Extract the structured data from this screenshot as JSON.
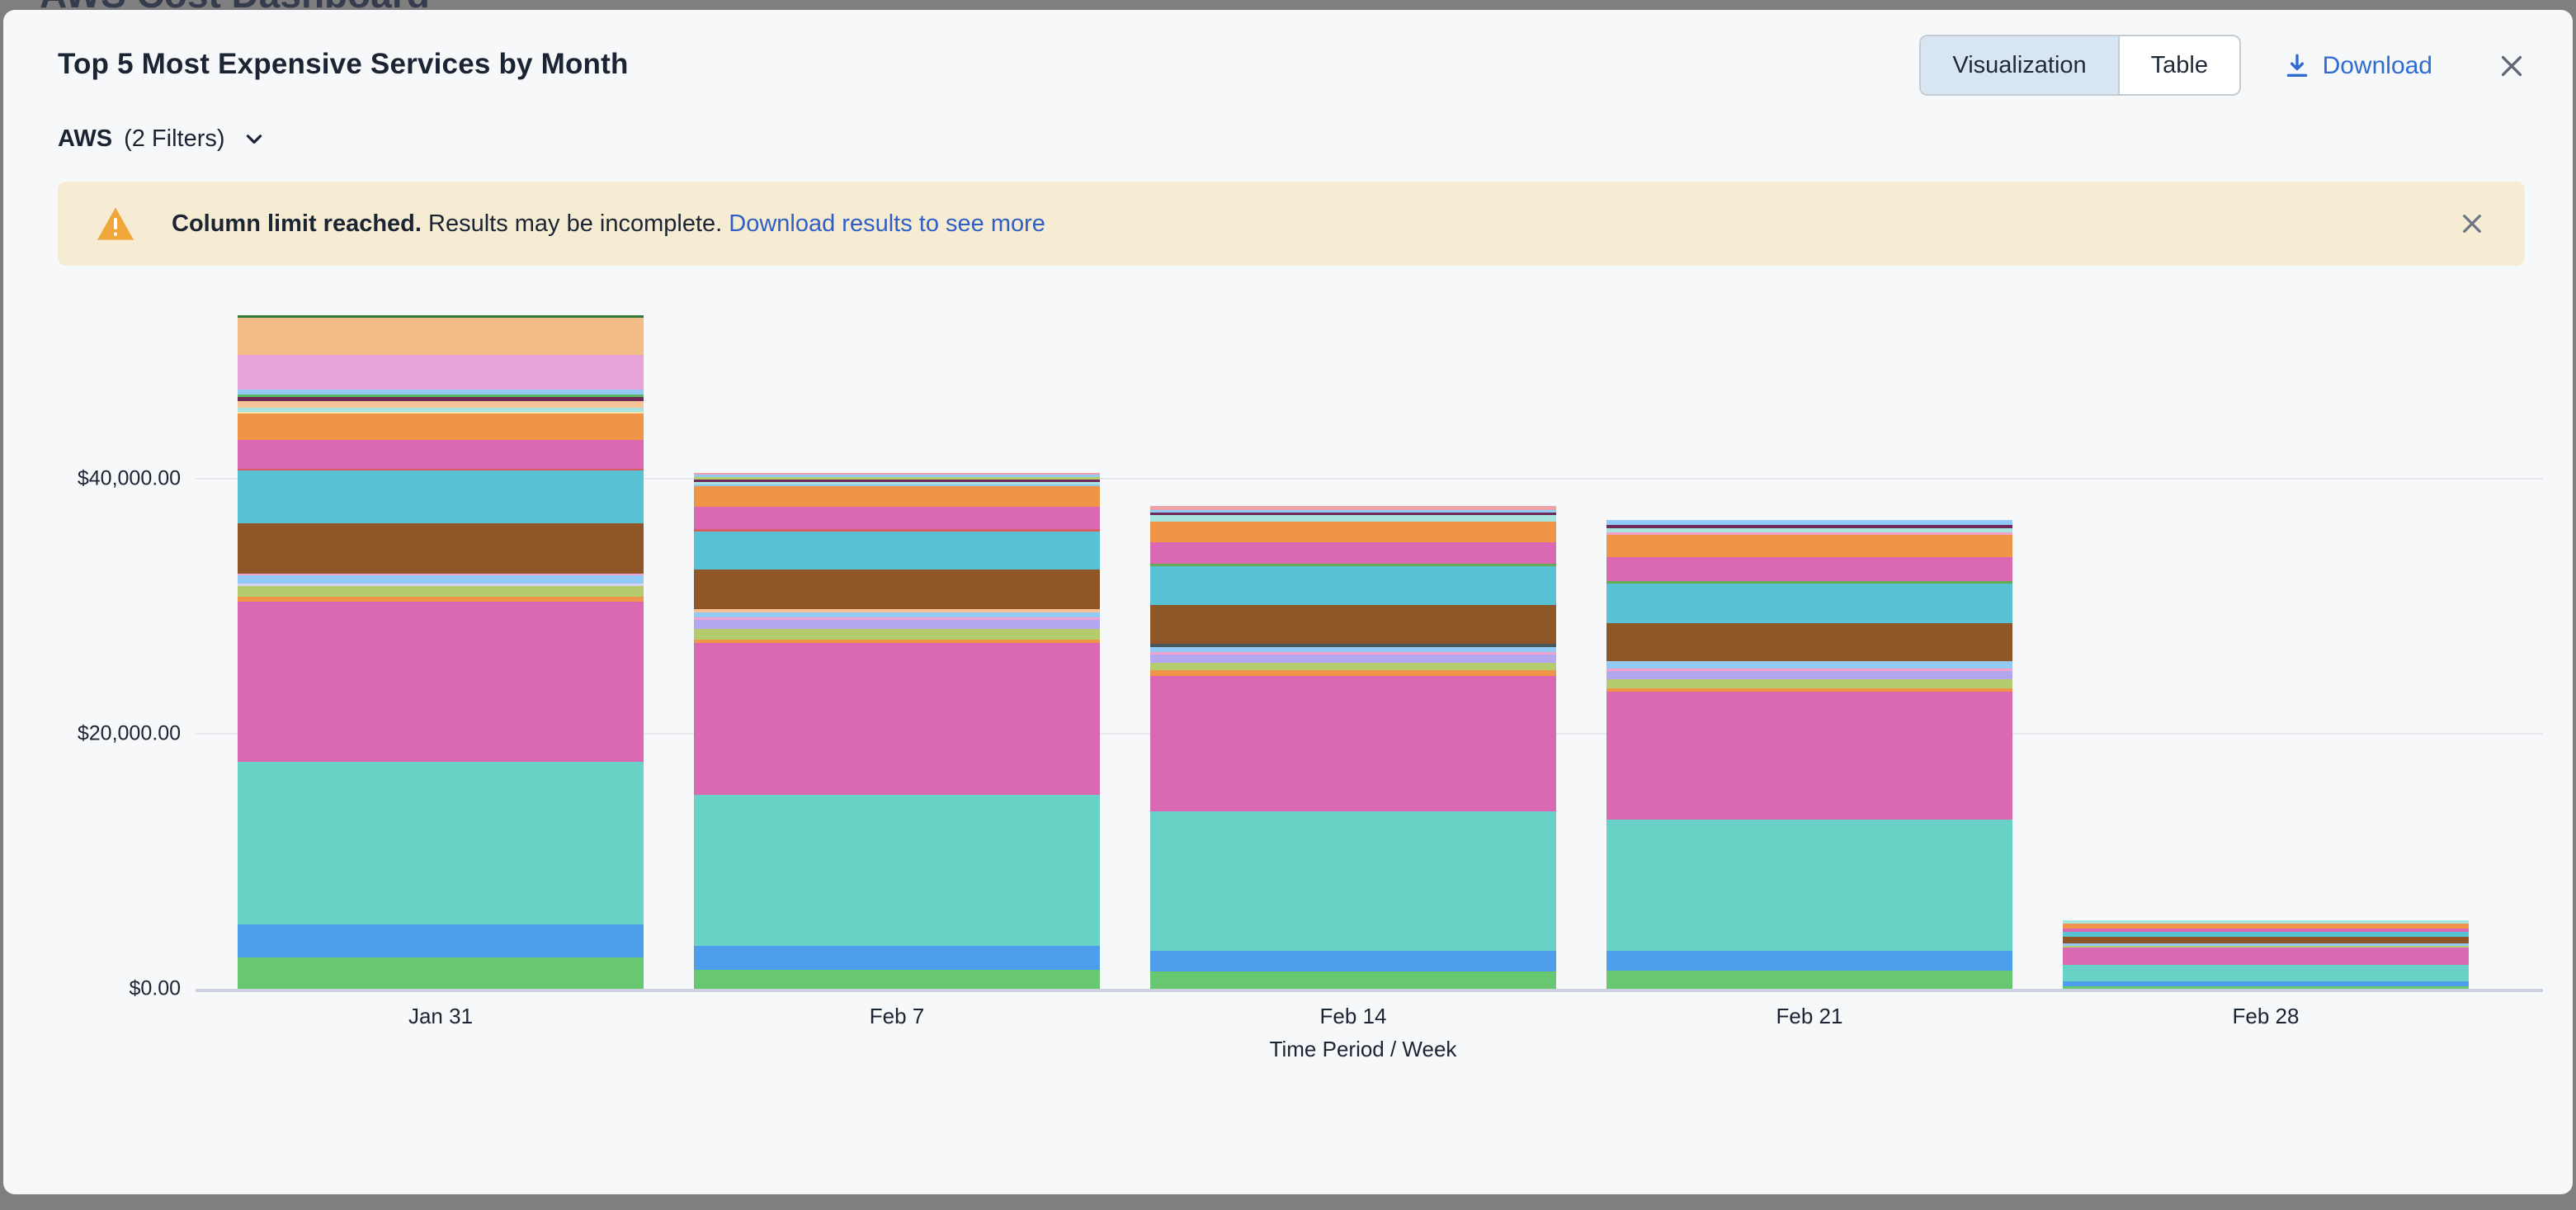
{
  "page": {
    "background_title": "AWS Cost Dashboard"
  },
  "header": {
    "title": "Top 5 Most Expensive Services by Month",
    "view_toggle": {
      "options": [
        "Visualization",
        "Table"
      ],
      "selected": "Visualization"
    },
    "download_label": "Download"
  },
  "filter": {
    "provider": "AWS",
    "filters_label": "(2 Filters)"
  },
  "banner": {
    "bold": "Column limit reached.",
    "text": " Results may be incomplete. ",
    "link": "Download results to see more"
  },
  "colors": {
    "accent_blue": "#2e6bd3",
    "banner_bg": "#f6ecd4",
    "warning_orange": "#f0a63a",
    "card_bg": "#f7f8fa",
    "toggle_active_bg": "#d8e6f4"
  },
  "chart_data": {
    "type": "bar",
    "stacked": true,
    "legend_visible": false,
    "xlabel": "Time Period / Week",
    "ylabel": "",
    "categories": [
      "Jan 31",
      "Feb 7",
      "Feb 14",
      "Feb 21",
      "Feb 28"
    ],
    "y_ticks": [
      "$0.00",
      "$20,000.00",
      "$40,000.00"
    ],
    "y_tick_values": [
      0,
      20000,
      40000
    ],
    "ylim": [
      0,
      53000
    ],
    "grid": true,
    "totals_approx": [
      52825,
      40460,
      37880,
      36770,
      5385
    ],
    "bars": [
      {
        "category": "Jan 31",
        "segments": [
          {
            "color": "#67c871",
            "value": 2460
          },
          {
            "color": "#4d9fec",
            "value": 2590
          },
          {
            "color": "#69d1c5",
            "value": 12750
          },
          {
            "color": "#d969b2",
            "value": 12560
          },
          {
            "color": "#ef9449",
            "value": 390
          },
          {
            "color": "#b5cc6e",
            "value": 840
          },
          {
            "color": "#d9d4f5",
            "value": 195
          },
          {
            "color": "#93c9f5",
            "value": 645
          },
          {
            "color": "#f2a3cd",
            "value": 130
          },
          {
            "color": "#8f5628",
            "value": 3950
          },
          {
            "color": "#57c2d4",
            "value": 4140
          },
          {
            "color": "#da5e5e",
            "value": 130
          },
          {
            "color": "#d969b2",
            "value": 2265
          },
          {
            "color": "#ef9449",
            "value": 2070
          },
          {
            "color": "#f6e3ae",
            "value": 130
          },
          {
            "color": "#a6e4dd",
            "value": 325
          },
          {
            "color": "#f5c397",
            "value": 520
          },
          {
            "color": "#6d2a58",
            "value": 325
          },
          {
            "color": "#5cb763",
            "value": 195
          },
          {
            "color": "#93c9f5",
            "value": 390
          },
          {
            "color": "#e6a3d7",
            "value": 2720
          },
          {
            "color": "#f3bb86",
            "value": 2910
          },
          {
            "color": "#30793a",
            "value": 195
          }
        ]
      },
      {
        "category": "Feb 7",
        "segments": [
          {
            "color": "#67c871",
            "value": 1490
          },
          {
            "color": "#4d9fec",
            "value": 1880
          },
          {
            "color": "#69d1c5",
            "value": 11840
          },
          {
            "color": "#d969b2",
            "value": 11910
          },
          {
            "color": "#ef9449",
            "value": 260
          },
          {
            "color": "#b5cc6e",
            "value": 840
          },
          {
            "color": "#b3a8ef",
            "value": 710
          },
          {
            "color": "#f2a3cd",
            "value": 195
          },
          {
            "color": "#93c9f5",
            "value": 390
          },
          {
            "color": "#f5c397",
            "value": 260
          },
          {
            "color": "#8f5628",
            "value": 3105
          },
          {
            "color": "#57c2d4",
            "value": 2975
          },
          {
            "color": "#da5e5e",
            "value": 195
          },
          {
            "color": "#d969b2",
            "value": 1750
          },
          {
            "color": "#ef9449",
            "value": 1620
          },
          {
            "color": "#93c9f5",
            "value": 130
          },
          {
            "color": "#a6e4dd",
            "value": 195
          },
          {
            "color": "#6d2a58",
            "value": 195
          },
          {
            "color": "#b5cc6e",
            "value": 195
          },
          {
            "color": "#93c9f5",
            "value": 195
          },
          {
            "color": "#eba3a6",
            "value": 130
          }
        ]
      },
      {
        "category": "Feb 14",
        "segments": [
          {
            "color": "#67c871",
            "value": 1360
          },
          {
            "color": "#4d9fec",
            "value": 1620
          },
          {
            "color": "#69d1c5",
            "value": 10940
          },
          {
            "color": "#d969b2",
            "value": 10615
          },
          {
            "color": "#ef9449",
            "value": 455
          },
          {
            "color": "#b5cc6e",
            "value": 585
          },
          {
            "color": "#b3a8ef",
            "value": 645
          },
          {
            "color": "#f2a3cd",
            "value": 195
          },
          {
            "color": "#93c9f5",
            "value": 390
          },
          {
            "color": "#46565a",
            "value": 260
          },
          {
            "color": "#8f5628",
            "value": 3040
          },
          {
            "color": "#57c2d4",
            "value": 3040
          },
          {
            "color": "#62aa53",
            "value": 195
          },
          {
            "color": "#d969b2",
            "value": 1685
          },
          {
            "color": "#ef9449",
            "value": 1620
          },
          {
            "color": "#a6e4dd",
            "value": 520
          },
          {
            "color": "#6d2a58",
            "value": 195
          },
          {
            "color": "#93c9f5",
            "value": 195
          },
          {
            "color": "#eba3a6",
            "value": 325
          }
        ]
      },
      {
        "category": "Feb 21",
        "segments": [
          {
            "color": "#67c871",
            "value": 1425
          },
          {
            "color": "#4d9fec",
            "value": 1555
          },
          {
            "color": "#69d1c5",
            "value": 10290
          },
          {
            "color": "#d969b2",
            "value": 10030
          },
          {
            "color": "#ef9449",
            "value": 260
          },
          {
            "color": "#b5cc6e",
            "value": 710
          },
          {
            "color": "#b3a8ef",
            "value": 645
          },
          {
            "color": "#f2a3cd",
            "value": 195
          },
          {
            "color": "#93c9f5",
            "value": 585
          },
          {
            "color": "#8f5628",
            "value": 2975
          },
          {
            "color": "#57c2d4",
            "value": 3105
          },
          {
            "color": "#62aa53",
            "value": 195
          },
          {
            "color": "#d969b2",
            "value": 1880
          },
          {
            "color": "#ef9449",
            "value": 1750
          },
          {
            "color": "#f2a3cd",
            "value": 195
          },
          {
            "color": "#a6e4dd",
            "value": 325
          },
          {
            "color": "#6d2a58",
            "value": 260
          },
          {
            "color": "#93c9f5",
            "value": 390
          }
        ]
      },
      {
        "category": "Feb 28",
        "segments": [
          {
            "color": "#67c871",
            "value": 195
          },
          {
            "color": "#4d9fec",
            "value": 390
          },
          {
            "color": "#69d1c5",
            "value": 1295
          },
          {
            "color": "#d969b2",
            "value": 1360
          },
          {
            "color": "#b5cc6e",
            "value": 130
          },
          {
            "color": "#93c9f5",
            "value": 195
          },
          {
            "color": "#8f5628",
            "value": 520
          },
          {
            "color": "#57c2d4",
            "value": 390
          },
          {
            "color": "#d969b2",
            "value": 260
          },
          {
            "color": "#ef9449",
            "value": 390
          },
          {
            "color": "#a6e4dd",
            "value": 260
          }
        ]
      }
    ]
  }
}
